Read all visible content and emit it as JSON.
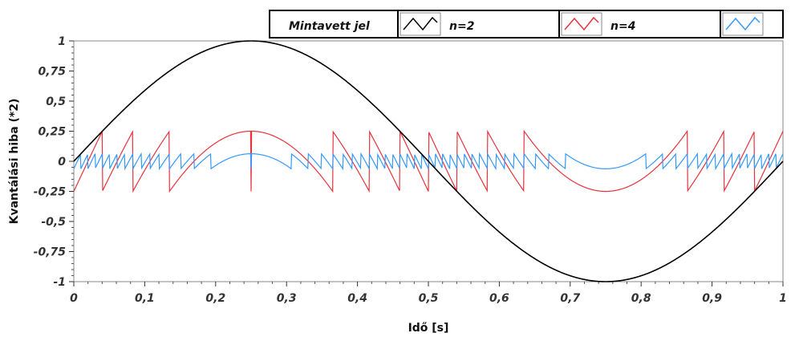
{
  "chart_data": {
    "type": "line",
    "title": "",
    "xlabel": "Idő [s]",
    "ylabel": "Kvantálási hiba (*2)",
    "xlim": [
      0,
      1
    ],
    "ylim": [
      -1,
      1
    ],
    "xticks": [
      "0",
      "0,1",
      "0,2",
      "0,3",
      "0,4",
      "0,5",
      "0,6",
      "0,7",
      "0,8",
      "0,9",
      "1"
    ],
    "yticks": [
      "1",
      "0,75",
      "0,5",
      "0,25",
      "0",
      "-0,25",
      "-0,5",
      "-0,75",
      "-1"
    ],
    "grid": false,
    "legend": {
      "position": "top",
      "entries": [
        {
          "label": "Mintavett jel",
          "color": "#000000"
        },
        {
          "label": "n=2",
          "color": "#e8323c"
        },
        {
          "label": "n=4",
          "color": "#3399ff"
        }
      ]
    },
    "series": [
      {
        "name": "Mintavett jel",
        "color": "#000000",
        "function": "sin(2*pi*t)",
        "amplitude": 1
      },
      {
        "name": "n=2",
        "color": "#e8323c",
        "function": "quantization_error",
        "levels": 4,
        "amplitude": 0.25
      },
      {
        "name": "n=4",
        "color": "#3399ff",
        "function": "quantization_error",
        "levels": 16,
        "amplitude": 0.0625
      }
    ]
  }
}
